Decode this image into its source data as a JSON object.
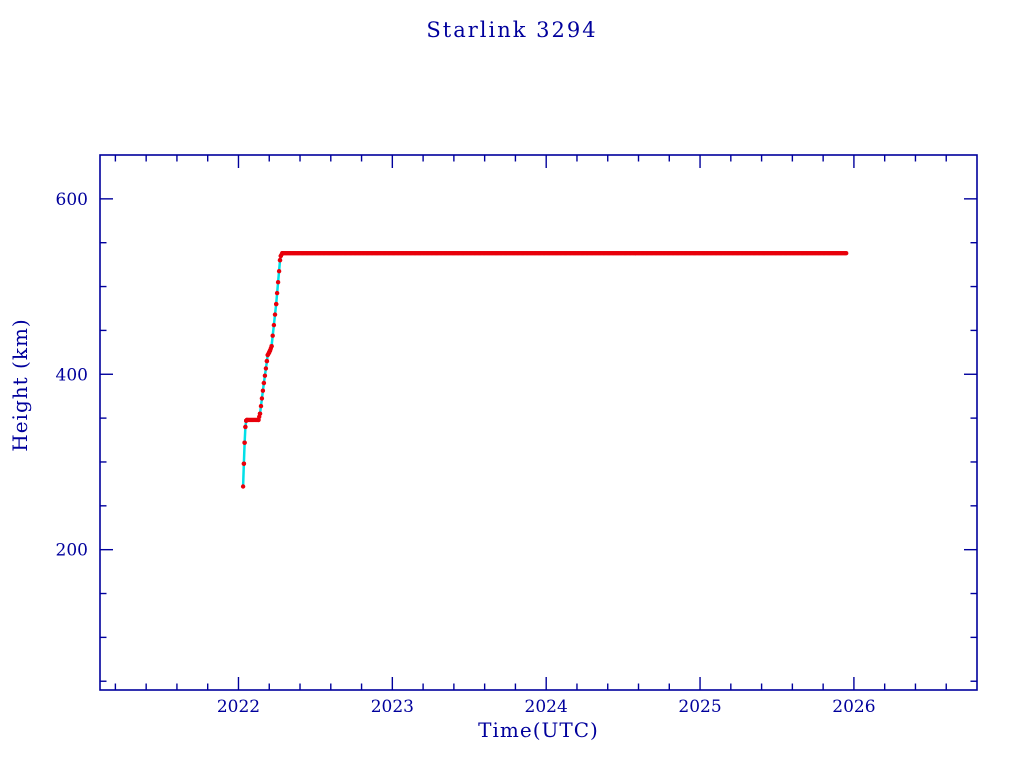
{
  "chart_data": {
    "type": "scatter",
    "title": "Starlink 3294",
    "xlabel": "Time(UTC)",
    "ylabel": "Height (km)",
    "xlim": [
      2021.1,
      2026.8
    ],
    "ylim": [
      40,
      650
    ],
    "x_major_ticks": [
      2022,
      2023,
      2024,
      2025,
      2026
    ],
    "x_tick_labels": [
      "2022",
      "2023",
      "2024",
      "2025",
      "2026"
    ],
    "x_minor_step": 0.2,
    "y_major_ticks": [
      200,
      400,
      600
    ],
    "y_tick_labels": [
      "200",
      "400",
      "600"
    ],
    "y_minor_step": 50,
    "grid": false,
    "legend": "none",
    "colors": {
      "frame": "#00009c",
      "text": "#00009c",
      "primary": "#e8000b",
      "secondary": "#00e0e8",
      "background": "#ffffff"
    },
    "description": "Satellite height vs time: launch at ~272 km in early 2022, parking step at ~348 km, orbit raise during 2022.13-2022.28, then operational plateau at ~538 km through late 2025.",
    "series": [
      {
        "name": "underlying-track-line",
        "color": "#00e0e8",
        "type": "line",
        "line_width": 2.5,
        "points": [
          [
            2022.03,
            272
          ],
          [
            2022.035,
            298
          ],
          [
            2022.04,
            322
          ],
          [
            2022.045,
            340
          ],
          [
            2022.05,
            347
          ],
          [
            2022.055,
            348
          ],
          [
            2022.13,
            348
          ],
          [
            2022.14,
            355
          ],
          [
            2022.165,
            390
          ],
          [
            2022.185,
            415
          ],
          [
            2022.19,
            422
          ],
          [
            2022.2,
            425
          ],
          [
            2022.205,
            427
          ],
          [
            2022.215,
            432
          ],
          [
            2022.245,
            480
          ],
          [
            2022.27,
            530
          ],
          [
            2022.275,
            535
          ],
          [
            2022.285,
            538
          ],
          [
            2025.95,
            538
          ]
        ]
      },
      {
        "name": "observed-height-markers",
        "color": "#e8000b",
        "type": "scatter-dense",
        "marker_radius": 2.2,
        "sample_step": 0.008,
        "points": [
          [
            2022.03,
            272
          ],
          [
            2022.035,
            298
          ],
          [
            2022.04,
            322
          ],
          [
            2022.045,
            340
          ],
          [
            2022.05,
            347
          ],
          [
            2022.055,
            348
          ],
          [
            2022.13,
            348
          ],
          [
            2022.14,
            355
          ],
          [
            2022.165,
            390
          ],
          [
            2022.185,
            415
          ],
          [
            2022.19,
            422
          ],
          [
            2022.2,
            425
          ],
          [
            2022.205,
            427
          ],
          [
            2022.215,
            432
          ],
          [
            2022.245,
            480
          ],
          [
            2022.27,
            530
          ],
          [
            2022.275,
            535
          ],
          [
            2022.285,
            538
          ],
          [
            2025.95,
            538
          ]
        ]
      }
    ]
  }
}
